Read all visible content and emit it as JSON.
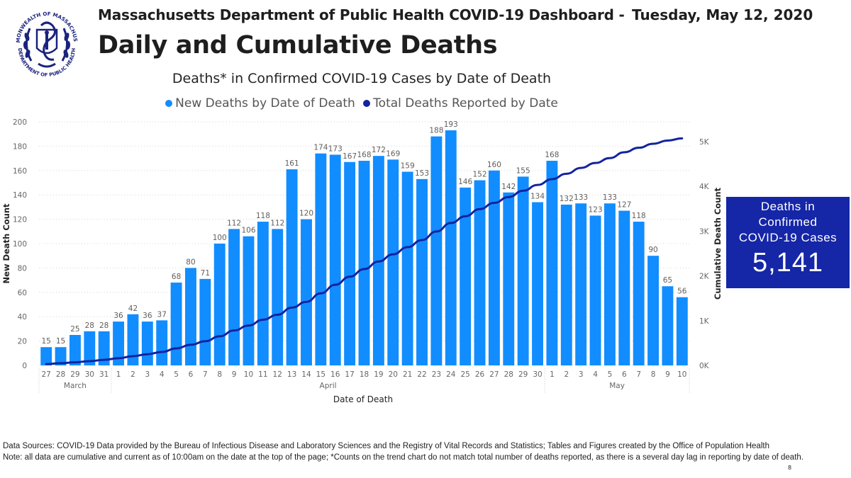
{
  "header": {
    "title": "Massachusetts Department of Public Health COVID-19 Dashboard -",
    "date": "Tuesday, May 12, 2020",
    "subtitle": "Daily and Cumulative Deaths",
    "seal_top_text": "COMMONWEALTH OF MASSACHUSETTS",
    "seal_bottom_text": "DEPARTMENT OF PUBLIC HEALTH"
  },
  "kpi": {
    "label_line1": "Deaths in",
    "label_line2": "Confirmed",
    "label_line3": "COVID-19 Cases",
    "value": "5,141",
    "color": "#1526a7"
  },
  "footer": {
    "line1": "Data Sources: COVID-19 Data provided by the Bureau of Infectious Disease and Laboratory Sciences and the Registry of Vital Records and Statistics; Tables and Figures created by the Office of Population Health",
    "line2": "Note: all data are cumulative and current as of 10:00am on the date at the top of the page; *Counts on the trend chart do not match total number of deaths reported, as there is a several day lag in reporting by date of death.",
    "page_number": "8"
  },
  "chart_data": {
    "type": "bar+line",
    "title": "Deaths* in Confirmed COVID-19 Cases by Date of Death",
    "xlabel": "Date of Death",
    "ylabel": "New Death Count",
    "y2label": "Cumulative Death Count",
    "ylim": [
      0,
      200
    ],
    "y2lim": [
      0,
      5440
    ],
    "yticks": [
      0,
      20,
      40,
      60,
      80,
      100,
      120,
      140,
      160,
      180,
      200
    ],
    "y2ticks": [
      {
        "value": 0,
        "label": "0K"
      },
      {
        "value": 1000,
        "label": "1K"
      },
      {
        "value": 2000,
        "label": "2K"
      },
      {
        "value": 3000,
        "label": "3K"
      },
      {
        "value": 4000,
        "label": "4K"
      },
      {
        "value": 5000,
        "label": "5K"
      }
    ],
    "grid": true,
    "legend_position": "top-center",
    "categories": [
      "27",
      "28",
      "29",
      "30",
      "31",
      "1",
      "2",
      "3",
      "4",
      "5",
      "6",
      "7",
      "8",
      "9",
      "10",
      "11",
      "12",
      "13",
      "14",
      "15",
      "16",
      "17",
      "18",
      "19",
      "20",
      "21",
      "22",
      "23",
      "24",
      "25",
      "26",
      "27",
      "28",
      "29",
      "30",
      "1",
      "2",
      "3",
      "4",
      "5",
      "6",
      "7",
      "8",
      "9",
      "10"
    ],
    "month_groups": [
      {
        "label": "March",
        "start": 0,
        "end": 4
      },
      {
        "label": "April",
        "start": 5,
        "end": 34
      },
      {
        "label": "May",
        "start": 35,
        "end": 44
      }
    ],
    "series": [
      {
        "name": "New Deaths by Date of Death",
        "type": "bar",
        "axis": "left",
        "color": "#118dff",
        "values": [
          15,
          15,
          25,
          28,
          28,
          36,
          42,
          36,
          37,
          68,
          80,
          71,
          100,
          112,
          106,
          118,
          112,
          161,
          120,
          174,
          173,
          167,
          168,
          172,
          169,
          159,
          153,
          188,
          193,
          146,
          152,
          160,
          142,
          155,
          134,
          168,
          132,
          133,
          123,
          133,
          127,
          118,
          90,
          65,
          56
        ]
      },
      {
        "name": "Total Deaths Reported by Date",
        "type": "line",
        "axis": "right",
        "color": "#12239e",
        "values": [
          30,
          50,
          70,
          95,
          125,
          160,
          205,
          250,
          300,
          380,
          460,
          540,
          650,
          780,
          890,
          1020,
          1130,
          1290,
          1420,
          1610,
          1800,
          1980,
          2150,
          2320,
          2480,
          2640,
          2800,
          2990,
          3180,
          3330,
          3490,
          3630,
          3760,
          3900,
          4030,
          4160,
          4280,
          4410,
          4520,
          4630,
          4760,
          4860,
          4950,
          5020,
          5070
        ]
      }
    ]
  }
}
